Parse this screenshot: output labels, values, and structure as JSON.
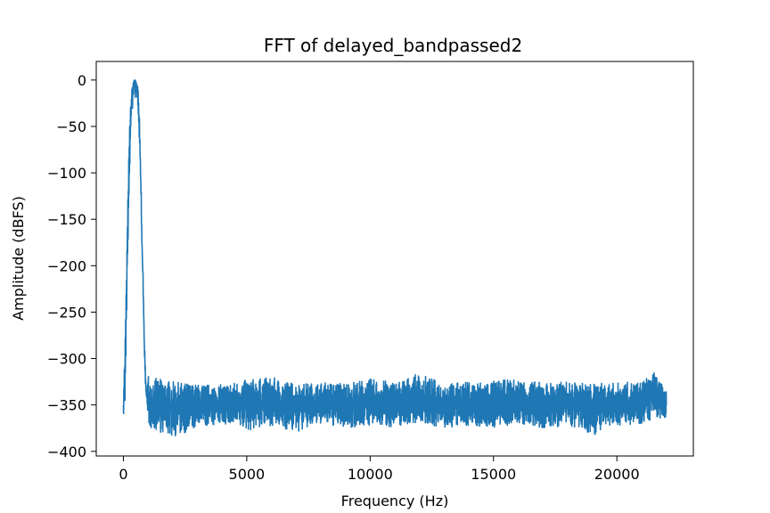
{
  "chart_data": {
    "type": "line",
    "title": "FFT of delayed_bandpassed2",
    "xlabel": "Frequency (Hz)",
    "ylabel": "Amplitude (dBFS)",
    "xlim": [
      -1100,
      23100
    ],
    "ylim": [
      -405,
      20
    ],
    "xticks": [
      0,
      5000,
      10000,
      15000,
      20000
    ],
    "xtick_labels": [
      "0",
      "5000",
      "10000",
      "15000",
      "20000"
    ],
    "yticks": [
      0,
      -50,
      -100,
      -150,
      -200,
      -250,
      -300,
      -350,
      -400
    ],
    "ytick_labels": [
      "0",
      "−50",
      "−100",
      "−150",
      "−200",
      "−250",
      "−300",
      "−350",
      "−400"
    ],
    "grid": false,
    "line_color": "#1f77b4",
    "series": [
      {
        "x": [
          0,
          50,
          100,
          150,
          200,
          250,
          300,
          350,
          400,
          450,
          500,
          550,
          600,
          650,
          700,
          750,
          800,
          850,
          900,
          950,
          1000,
          1100,
          2000,
          3000,
          4000,
          5000,
          6000,
          7000,
          8000,
          9000,
          10000,
          11000,
          12000,
          13000,
          14000,
          15000,
          16000,
          17000,
          18000,
          19000,
          20000,
          21000,
          21500,
          22000
        ],
        "y": [
          -350,
          -320,
          -260,
          -190,
          -120,
          -70,
          -35,
          -15,
          -4,
          0,
          -2,
          -8,
          -25,
          -60,
          -110,
          -170,
          -235,
          -290,
          -330,
          -345,
          -348,
          -350,
          -350,
          -348,
          -350,
          -346,
          -350,
          -348,
          -350,
          -347,
          -350,
          -348,
          -350,
          -347,
          -350,
          -348,
          -350,
          -347,
          -350,
          -348,
          -350,
          -347,
          -330,
          -350
        ],
        "band_low": [
          -360,
          -360,
          -300,
          -220,
          -150,
          -95,
          -55,
          -35,
          -25,
          -20,
          -20,
          -30,
          -45,
          -80,
          -130,
          -190,
          -255,
          -300,
          -340,
          -360,
          -370,
          -375,
          -385,
          -375,
          -370,
          -378,
          -372,
          -380,
          -370,
          -375,
          -372,
          -374,
          -368,
          -376,
          -372,
          -375,
          -370,
          -377,
          -372,
          -383,
          -372,
          -370,
          -365,
          -365
        ],
        "band_high": [
          -320,
          -300,
          -240,
          -170,
          -100,
          -50,
          -20,
          -8,
          -2,
          0,
          0,
          -2,
          -10,
          -40,
          -90,
          -150,
          -215,
          -275,
          -320,
          -330,
          -315,
          -320,
          -325,
          -328,
          -328,
          -323,
          -320,
          -327,
          -326,
          -326,
          -322,
          -325,
          -316,
          -327,
          -325,
          -324,
          -322,
          -326,
          -325,
          -327,
          -326,
          -325,
          -315,
          -335
        ]
      }
    ]
  }
}
